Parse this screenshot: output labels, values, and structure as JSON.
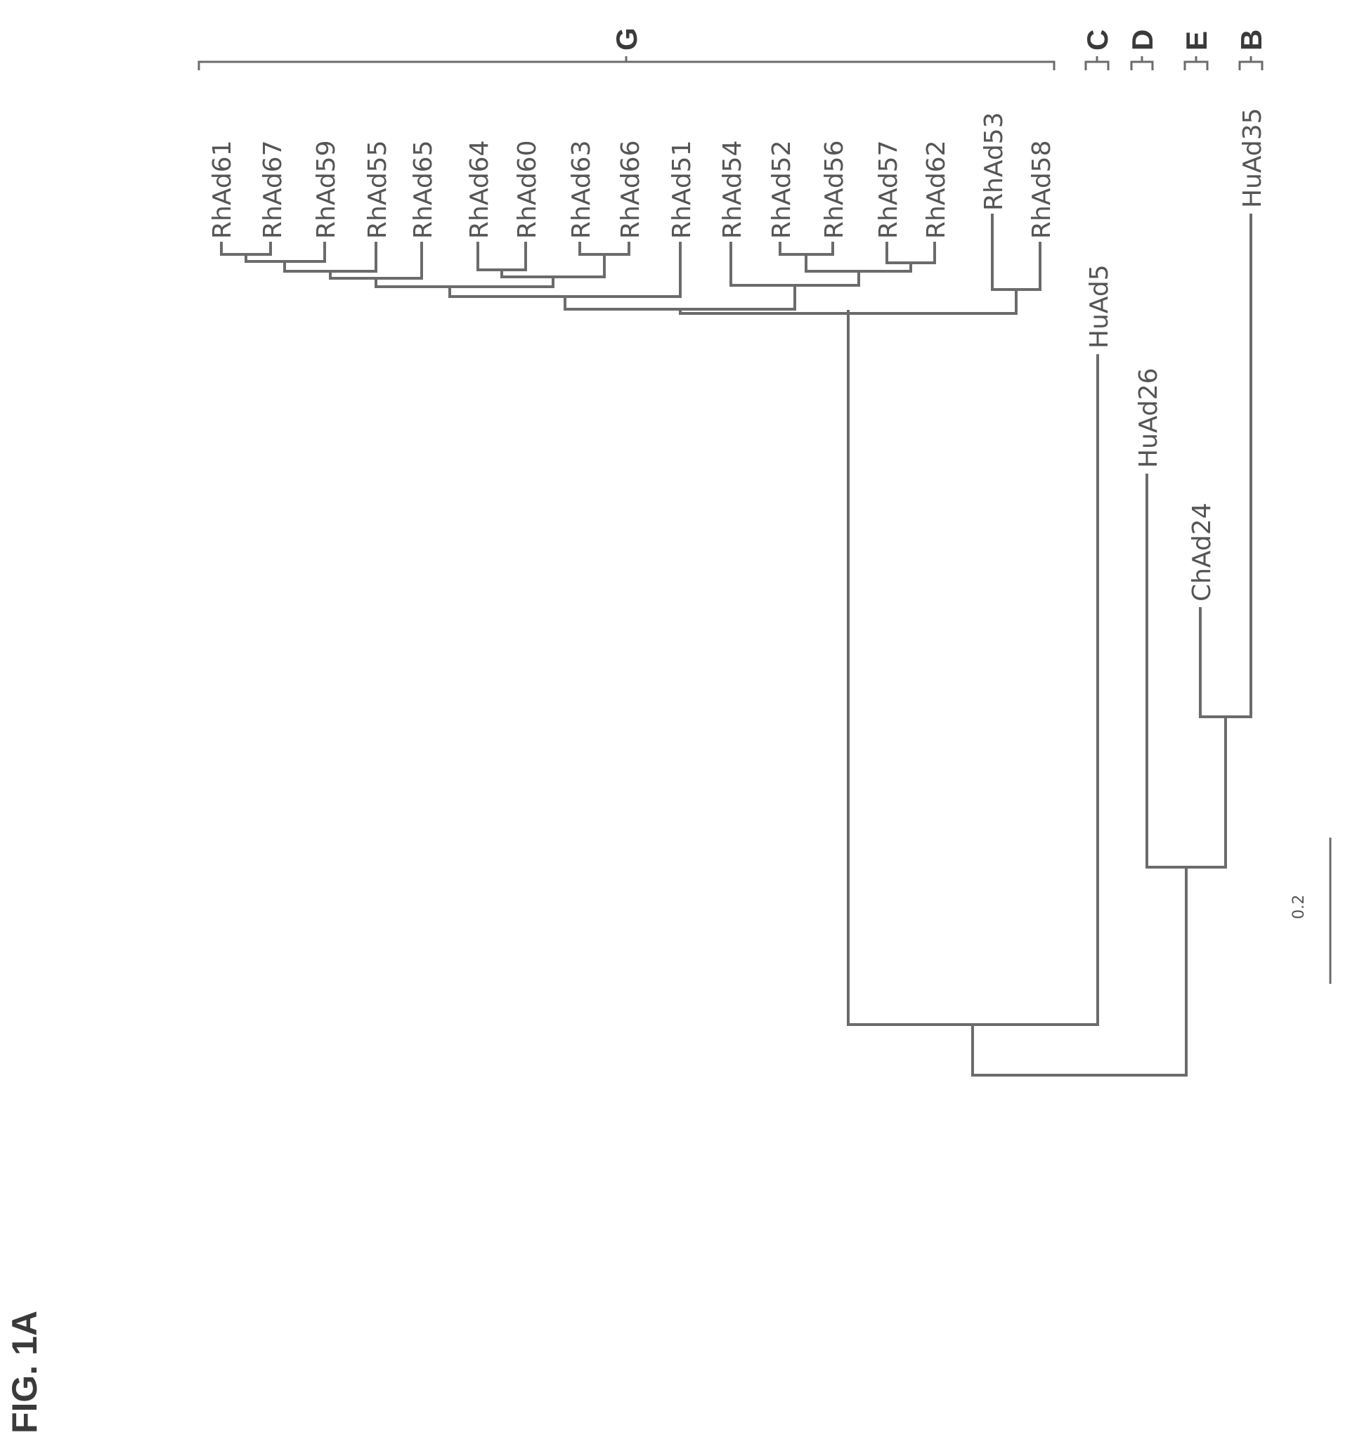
{
  "figure": {
    "label": "FIG. 1A",
    "scale_bar": {
      "label": "0.2",
      "length": 0.2
    }
  },
  "tree": {
    "leaves": [
      "RhAd61",
      "RhAd67",
      "RhAd59",
      "RhAd55",
      "RhAd65",
      "RhAd64",
      "RhAd60",
      "RhAd63",
      "RhAd66",
      "RhAd51",
      "RhAd54",
      "RhAd52",
      "RhAd56",
      "RhAd57",
      "RhAd62",
      "RhAd53",
      "RhAd58",
      "HuAd5",
      "HuAd26",
      "ChAd24",
      "HuAd35"
    ],
    "groups": [
      {
        "name": "G",
        "members": [
          "RhAd61",
          "RhAd58"
        ]
      },
      {
        "name": "C",
        "members": [
          "HuAd5"
        ]
      },
      {
        "name": "D",
        "members": [
          "HuAd26"
        ]
      },
      {
        "name": "E",
        "members": [
          "ChAd24"
        ]
      },
      {
        "name": "B",
        "members": [
          "HuAd35"
        ]
      }
    ]
  }
}
